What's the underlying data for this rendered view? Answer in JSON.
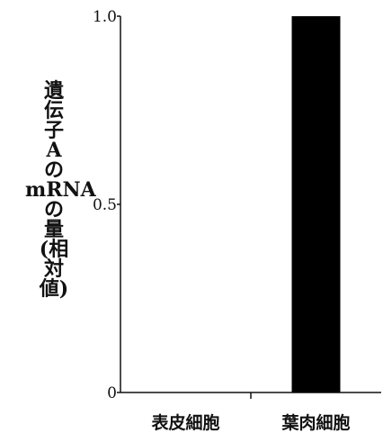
{
  "chart_data": {
    "type": "bar",
    "categories": [
      "表皮細胞",
      "葉肉細胞"
    ],
    "values": [
      0,
      1.0
    ],
    "ylabel_lines": [
      "遺",
      "伝",
      "子",
      "A",
      "の",
      "mRNA",
      "の",
      "量",
      "(相",
      "対",
      "値)"
    ],
    "ylim": [
      0,
      1.0
    ],
    "yticks": [
      {
        "value": 0,
        "label": "0"
      },
      {
        "value": 0.5,
        "label": "0.5"
      },
      {
        "value": 1.0,
        "label": "1.0"
      }
    ],
    "bar_color": "#000000",
    "grid": false
  }
}
